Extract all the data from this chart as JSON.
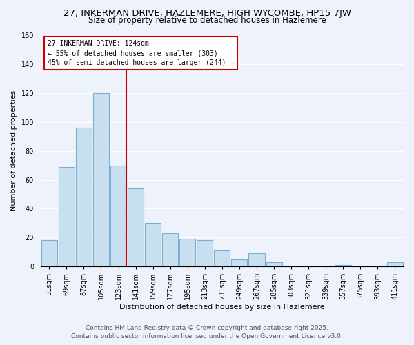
{
  "title": "27, INKERMAN DRIVE, HAZLEMERE, HIGH WYCOMBE, HP15 7JW",
  "subtitle": "Size of property relative to detached houses in Hazlemere",
  "xlabel": "Distribution of detached houses by size in Hazlemere",
  "ylabel": "Number of detached properties",
  "categories": [
    "51sqm",
    "69sqm",
    "87sqm",
    "105sqm",
    "123sqm",
    "141sqm",
    "159sqm",
    "177sqm",
    "195sqm",
    "213sqm",
    "231sqm",
    "249sqm",
    "267sqm",
    "285sqm",
    "303sqm",
    "321sqm",
    "339sqm",
    "357sqm",
    "375sqm",
    "393sqm",
    "411sqm"
  ],
  "values": [
    18,
    69,
    96,
    120,
    70,
    54,
    30,
    23,
    19,
    18,
    11,
    5,
    9,
    3,
    0,
    0,
    0,
    1,
    0,
    0,
    3
  ],
  "bar_color": "#c8dff0",
  "bar_edge_color": "#7aafd4",
  "red_line_index": 4,
  "annotation_line1": "27 INKERMAN DRIVE: 124sqm",
  "annotation_line2": "← 55% of detached houses are smaller (303)",
  "annotation_line3": "45% of semi-detached houses are larger (244) →",
  "box_color": "#ffffff",
  "box_edge_color": "#cc0000",
  "red_line_color": "#cc0000",
  "ylim": [
    0,
    160
  ],
  "yticks": [
    0,
    20,
    40,
    60,
    80,
    100,
    120,
    140,
    160
  ],
  "footnote1": "Contains HM Land Registry data © Crown copyright and database right 2025.",
  "footnote2": "Contains public sector information licensed under the Open Government Licence v3.0.",
  "background_color": "#eef2fa",
  "grid_color": "#ffffff",
  "title_fontsize": 9.5,
  "subtitle_fontsize": 8.5,
  "axis_label_fontsize": 8,
  "tick_fontsize": 7,
  "annotation_fontsize": 7,
  "footnote_fontsize": 6.5
}
